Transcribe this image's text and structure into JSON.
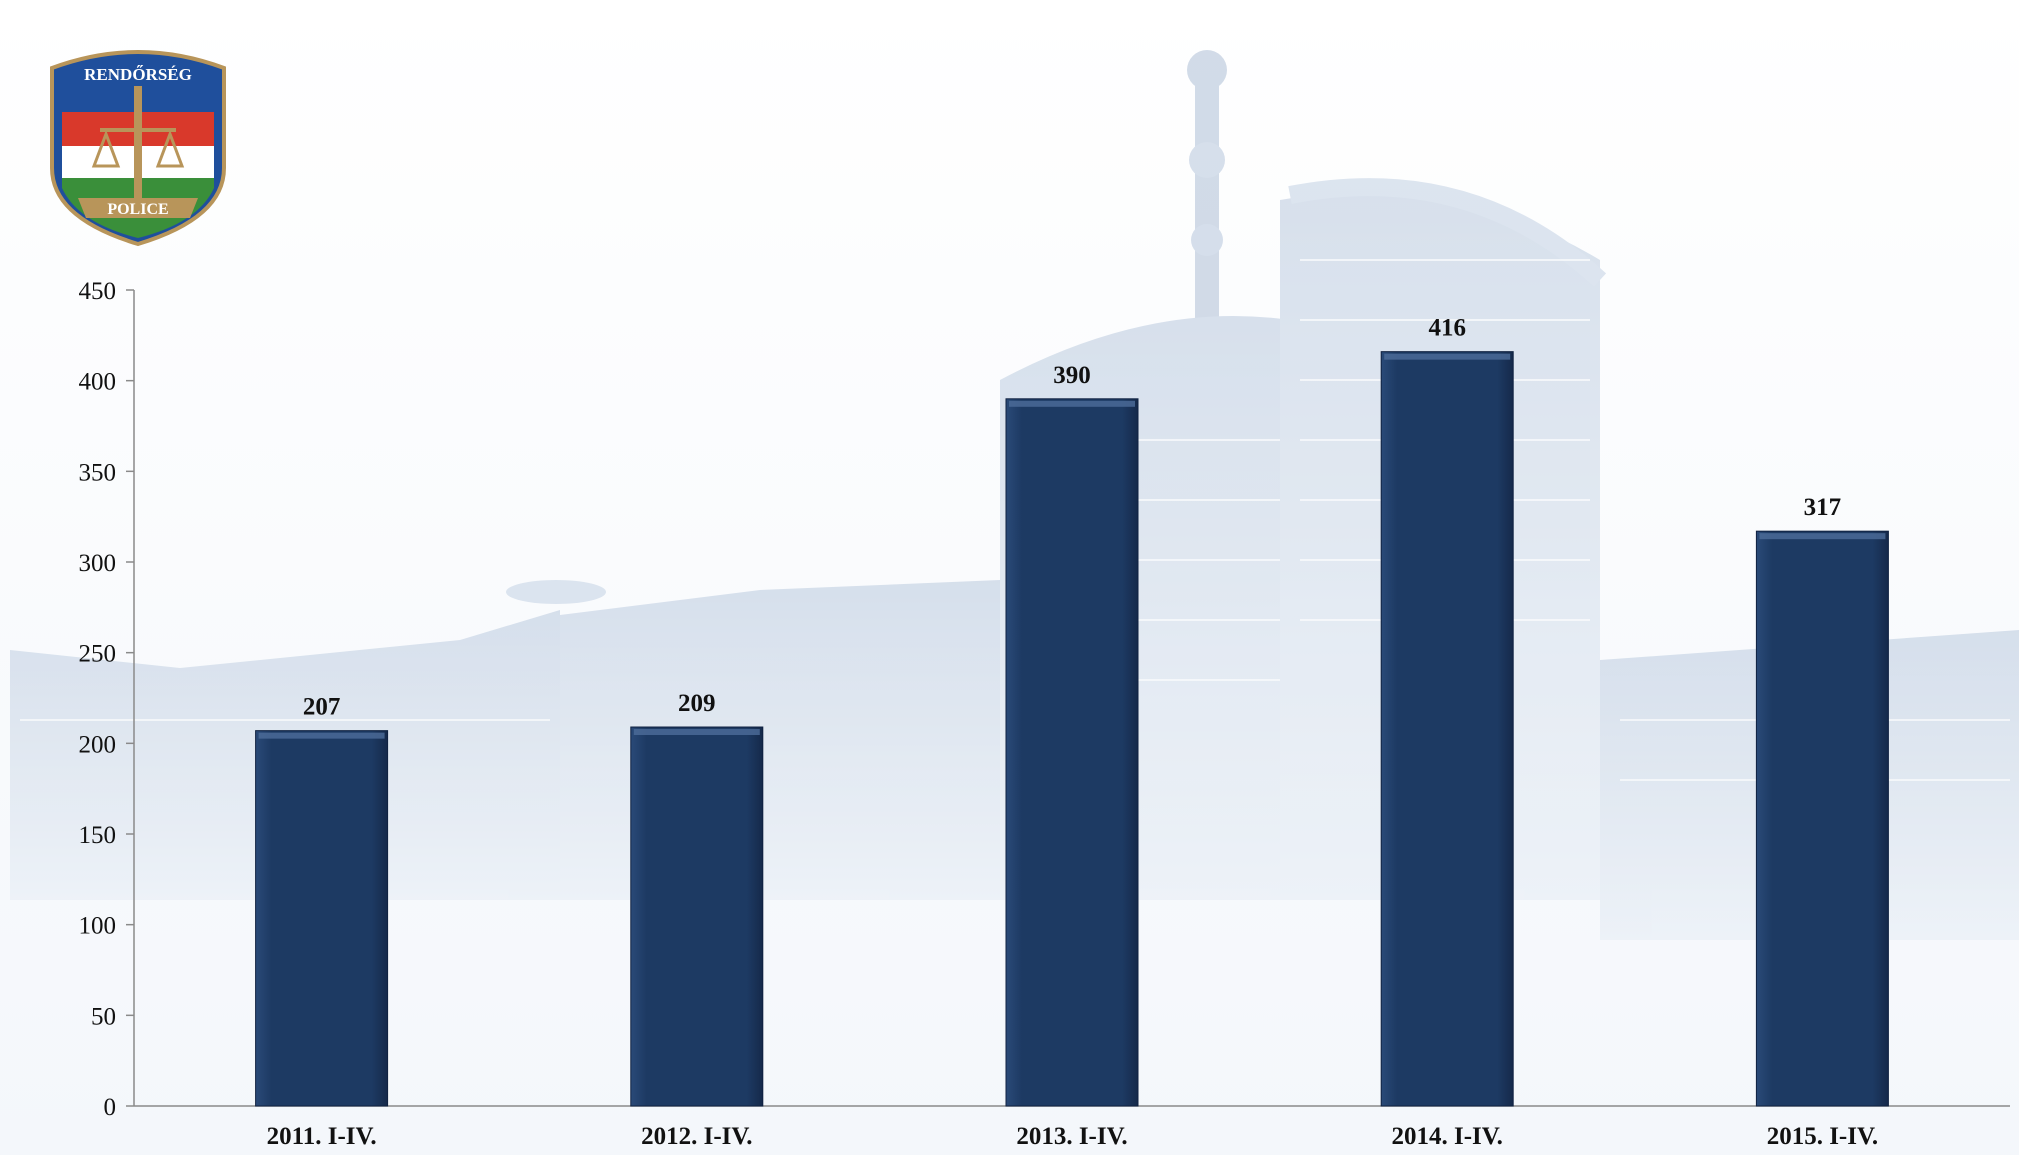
{
  "logo": {
    "top_text": "RENDŐRSÉG",
    "bottom_text": "POLICE",
    "icon": "police-shield-logo",
    "colors": {
      "red": "#d9392b",
      "white": "#ffffff",
      "green": "#3a8f3a",
      "blue": "#1f4f9c",
      "gold": "#b8955a"
    }
  },
  "background": {
    "icon": "building-watermark-icon",
    "tint": "#c9d6e6"
  },
  "chart_data": {
    "type": "bar",
    "categories": [
      "2011. I-IV.",
      "2012. I-IV.",
      "2013. I-IV.",
      "2014. I-IV.",
      "2015. I-IV."
    ],
    "values": [
      207,
      209,
      390,
      416,
      317
    ],
    "data_labels": [
      "207",
      "209",
      "390",
      "416",
      "317"
    ],
    "ylim": [
      0,
      450
    ],
    "yticks": [
      0,
      50,
      100,
      150,
      200,
      250,
      300,
      350,
      400,
      450
    ],
    "title": "",
    "xlabel": "",
    "ylabel": "",
    "grid": false,
    "legend": "none",
    "bar_color": "#1d3a63"
  }
}
